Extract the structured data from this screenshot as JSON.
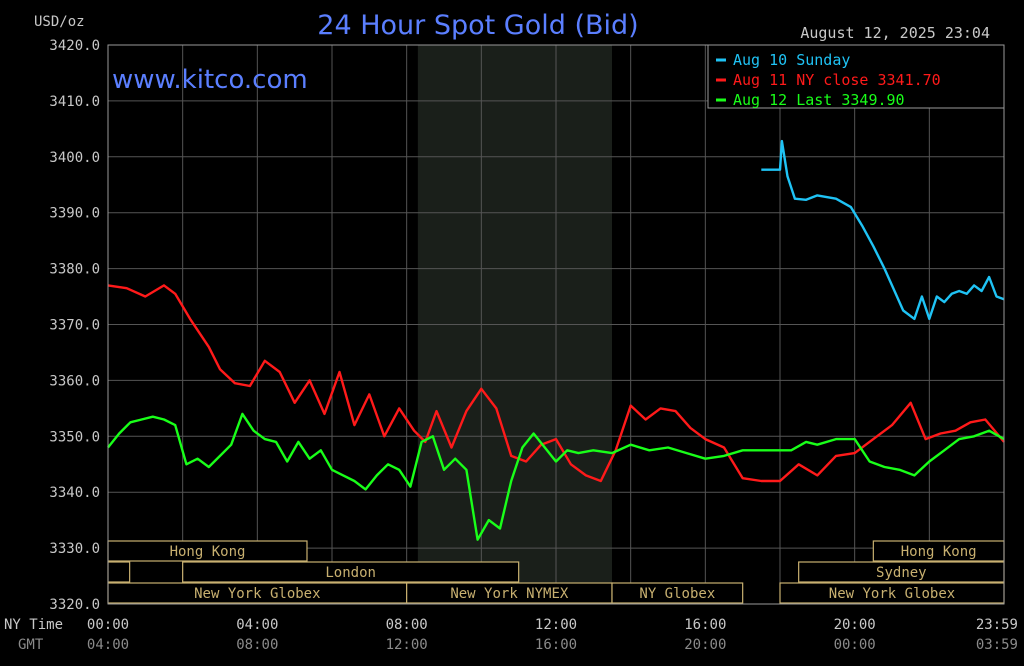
{
  "header": {
    "unit": "USD/oz",
    "title": "24 Hour Spot Gold (Bid)",
    "timestamp": "August 12, 2025 23:04",
    "watermark": "www.kitco.com"
  },
  "colors": {
    "background": "#000000",
    "grid": "#555555",
    "frame": "#9a9a9a",
    "title": "#5b7fff",
    "session_shade": "#1a1f1a",
    "market_bar": "#c8b070",
    "aug10": "#1fc3f5",
    "aug11": "#ff1a1a",
    "aug12": "#19ff19",
    "axis_text": "#c8c8c8",
    "gmt_text": "#8a8a8a"
  },
  "markets": [
    {
      "label": "Hong Kong",
      "row": 1,
      "start": 0.0,
      "end": 5.33
    },
    {
      "label": "",
      "row": 2,
      "start": 0.0,
      "end": 0.58
    },
    {
      "label": "London",
      "row": 2,
      "start": 2.0,
      "end": 11.0
    },
    {
      "label": "New York Globex",
      "row": 3,
      "start": 0.0,
      "end": 8.0
    },
    {
      "label": "New York NYMEX",
      "row": 3,
      "start": 8.0,
      "end": 13.5
    },
    {
      "label": "NY Globex",
      "row": 3,
      "start": 13.5,
      "end": 17.0
    },
    {
      "label": "Hong Kong",
      "row": 1,
      "start": 20.5,
      "end": 24.0
    },
    {
      "label": "Sydney",
      "row": 2,
      "start": 18.5,
      "end": 24.0
    },
    {
      "label": "New York Globex",
      "row": 3,
      "start": 18.0,
      "end": 24.0
    }
  ],
  "axis_rows": {
    "ny_label": "NY Time",
    "gmt_label": "GMT"
  },
  "chart_data": {
    "type": "line",
    "title": "24 Hour Spot Gold (Bid)",
    "ylabel": "USD/oz",
    "ylim": [
      3320,
      3420
    ],
    "xlim": [
      0,
      24
    ],
    "y_ticks": [
      "3420.0",
      "3410.0",
      "3400.0",
      "3390.0",
      "3380.0",
      "3370.0",
      "3360.0",
      "3350.0",
      "3340.0",
      "3330.0",
      "3320.0"
    ],
    "x_ticks_ny": [
      "00:00",
      "04:00",
      "08:00",
      "12:00",
      "16:00",
      "20:00",
      "23:59"
    ],
    "x_ticks_gmt": [
      "04:00",
      "08:00",
      "12:00",
      "16:00",
      "20:00",
      "00:00",
      "03:59"
    ],
    "shaded_region": [
      8.3,
      13.5
    ],
    "grid": true,
    "legend_position": "top-right",
    "series": [
      {
        "name": "Aug 10 Sunday",
        "color": "#1fc3f5",
        "x": [
          17.5,
          18.0,
          18.05,
          18.2,
          18.4,
          18.7,
          19.0,
          19.5,
          19.9,
          20.2,
          20.5,
          20.8,
          21.0,
          21.3,
          21.6,
          21.8,
          22.0,
          22.2,
          22.4,
          22.6,
          22.8,
          23.0,
          23.2,
          23.4,
          23.6,
          23.8,
          24.0
        ],
        "y": [
          3397.7,
          3397.7,
          3402.8,
          3396.5,
          3392.5,
          3392.3,
          3393.1,
          3392.5,
          3391.0,
          3387.7,
          3384.0,
          3380.0,
          3377.0,
          3372.5,
          3371.0,
          3375.0,
          3371.0,
          3375.0,
          3374.0,
          3375.5,
          3376.0,
          3375.5,
          3377.0,
          3376.0,
          3378.5,
          3375.0,
          3374.5
        ]
      },
      {
        "name": "Aug 11 NY close 3341.70",
        "color": "#ff1a1a",
        "x": [
          0.0,
          0.5,
          1.0,
          1.5,
          1.8,
          2.2,
          2.7,
          3.0,
          3.4,
          3.8,
          4.2,
          4.6,
          5.0,
          5.4,
          5.8,
          6.2,
          6.6,
          7.0,
          7.4,
          7.8,
          8.2,
          8.5,
          8.8,
          9.2,
          9.6,
          10.0,
          10.4,
          10.8,
          11.2,
          11.6,
          12.0,
          12.4,
          12.8,
          13.2,
          13.6,
          14.0,
          14.4,
          14.8,
          15.2,
          15.6,
          16.0,
          16.5,
          17.0,
          17.5,
          18.0,
          18.5,
          19.0,
          19.5,
          20.0,
          20.5,
          21.0,
          21.5,
          21.9,
          22.3,
          22.7,
          23.1,
          23.5,
          24.0
        ],
        "y": [
          3377.0,
          3376.5,
          3375.0,
          3377.0,
          3375.5,
          3371.0,
          3366.0,
          3362.0,
          3359.5,
          3359.0,
          3363.5,
          3361.5,
          3356.0,
          3360.0,
          3354.0,
          3361.5,
          3352.0,
          3357.5,
          3350.0,
          3355.0,
          3351.0,
          3349.0,
          3354.5,
          3348.0,
          3354.5,
          3358.5,
          3355.0,
          3346.5,
          3345.5,
          3348.5,
          3349.5,
          3345.0,
          3343.0,
          3342.0,
          3347.5,
          3355.5,
          3353.0,
          3355.0,
          3354.5,
          3351.5,
          3349.5,
          3348.0,
          3342.5,
          3342.0,
          3342.0,
          3345.0,
          3343.0,
          3346.5,
          3347.0,
          3349.5,
          3352.0,
          3356.0,
          3349.5,
          3350.5,
          3351.0,
          3352.5,
          3353.0,
          3349.0
        ]
      },
      {
        "name": "Aug 12 Last 3349.90",
        "color": "#19ff19",
        "x": [
          0.0,
          0.3,
          0.6,
          0.9,
          1.2,
          1.5,
          1.8,
          2.1,
          2.4,
          2.7,
          3.0,
          3.3,
          3.6,
          3.9,
          4.2,
          4.5,
          4.8,
          5.1,
          5.4,
          5.7,
          6.0,
          6.3,
          6.6,
          6.9,
          7.2,
          7.5,
          7.8,
          8.1,
          8.4,
          8.7,
          9.0,
          9.3,
          9.6,
          9.9,
          10.2,
          10.5,
          10.8,
          11.1,
          11.4,
          11.7,
          12.0,
          12.3,
          12.6,
          13.0,
          13.5,
          14.0,
          14.5,
          15.0,
          15.5,
          16.0,
          16.5,
          17.0,
          17.5,
          18.0,
          18.3,
          18.7,
          19.0,
          19.5,
          20.0,
          20.4,
          20.8,
          21.2,
          21.6,
          22.0,
          22.4,
          22.8,
          23.2,
          23.6,
          24.0
        ],
        "y": [
          3348.0,
          3350.5,
          3352.5,
          3353.0,
          3353.5,
          3353.0,
          3352.0,
          3345.0,
          3346.0,
          3344.5,
          3346.5,
          3348.5,
          3354.0,
          3351.0,
          3349.5,
          3349.0,
          3345.5,
          3349.0,
          3346.0,
          3347.5,
          3344.0,
          3343.0,
          3342.0,
          3340.5,
          3343.0,
          3345.0,
          3344.0,
          3341.0,
          3349.0,
          3350.0,
          3344.0,
          3346.0,
          3344.0,
          3331.5,
          3335.0,
          3333.5,
          3342.0,
          3348.0,
          3350.5,
          3348.0,
          3345.5,
          3347.5,
          3347.0,
          3347.5,
          3347.0,
          3348.5,
          3347.5,
          3348.0,
          3347.0,
          3346.0,
          3346.5,
          3347.5,
          3347.5,
          3347.5,
          3347.5,
          3349.0,
          3348.5,
          3349.5,
          3349.5,
          3345.5,
          3344.5,
          3344.0,
          3343.0,
          3345.5,
          3347.5,
          3349.5,
          3350.0,
          3351.0,
          3349.5
        ]
      }
    ]
  }
}
